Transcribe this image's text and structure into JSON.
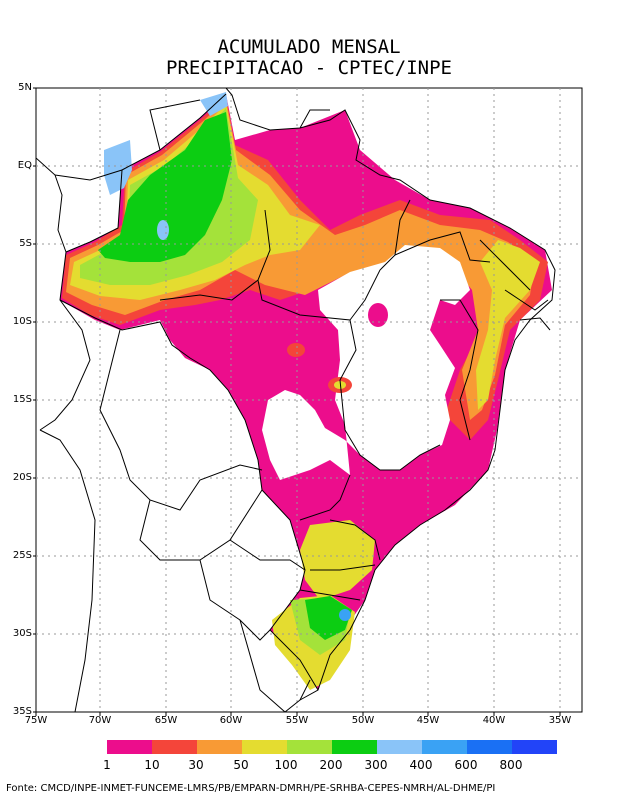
{
  "title_line1": "ACUMULADO MENSAL",
  "title_line2": "PRECIPITACAO - CPTEC/INPE",
  "lat_labels": [
    "5N",
    "EQ",
    "5S",
    "10S",
    "15S",
    "20S",
    "25S",
    "30S",
    "35S"
  ],
  "lon_labels": [
    "75W",
    "70W",
    "65W",
    "60W",
    "55W",
    "50W",
    "45W",
    "40W",
    "35W"
  ],
  "legend": {
    "labels": [
      "1",
      "10",
      "30",
      "50",
      "100",
      "200",
      "300",
      "400",
      "600",
      "800"
    ],
    "colors": [
      "#ec0d8c",
      "#f4453a",
      "#f89a35",
      "#e4dc30",
      "#a4e23a",
      "#0ccd12",
      "#8ac4f8",
      "#3aa2f4",
      "#1a70f4",
      "#2244f8"
    ]
  },
  "footer": "Fonte: CMCD/INPE-INMET-FUNCEME-LMRS/PB/EMPARN-DMRH/PE-SRHBA-CEPES-NMRH/AL-DHME/PI"
}
